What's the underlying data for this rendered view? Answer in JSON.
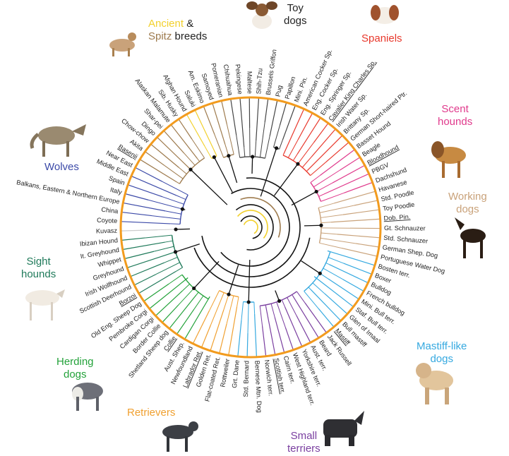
{
  "groups": {
    "ancient_label": "Ancient",
    "ancient_amp": "&",
    "spitz_label": "Spitz",
    "spitz_rest": "breeds",
    "toy_line1": "Toy",
    "toy_line2": "dogs",
    "spaniels": "Spaniels",
    "scent_line1": "Scent",
    "scent_line2": "hounds",
    "working_line1": "Working",
    "working_line2": "dogs",
    "wolves": "Wolves",
    "sight_line1": "Sight",
    "sight_line2": "hounds",
    "mastiff_line1": "Mastiff-like",
    "mastiff_line2": "dogs",
    "herding_line1": "Herding",
    "herding_line2": "dogs",
    "retrievers": "Retrievers",
    "small_line1": "Small",
    "small_line2": "terriers"
  },
  "colors": {
    "ancient": "#f2d02c",
    "spitz": "#9e7b4e",
    "toy": "#444444",
    "spaniels": "#e8382c",
    "scent": "#e03a8c",
    "working": "#c9a27a",
    "wolves": "#3c4aa8",
    "sight": "#1f7a5a",
    "herding": "#23a23a",
    "retrievers": "#f0a030",
    "mastiff": "#35a9e0",
    "small": "#7a3fa0",
    "ring": "#f29b1e",
    "tree": "#111111"
  },
  "photos": [
    "basenji-photo",
    "papillon-photo",
    "cavalier-photo",
    "wolf-photo",
    "bloodhound-photo",
    "doberman-photo",
    "borzoi-photo",
    "mastiff-photo",
    "collie-photo",
    "labrador-photo",
    "scottish-terrier-photo"
  ],
  "breeds": [
    {
      "name": "Papillon",
      "clade": "toy",
      "u": false
    },
    {
      "name": "Mini. Pin.",
      "clade": "toy",
      "u": false
    },
    {
      "name": "American Cocker Sp.",
      "clade": "spaniels",
      "u": false
    },
    {
      "name": "Eng. Cocker Sp.",
      "clade": "spaniels",
      "u": false
    },
    {
      "name": "Eng. Springer Sp.",
      "clade": "spaniels",
      "u": false
    },
    {
      "name": "Cavalier King Charles Sp.",
      "clade": "spaniels",
      "u": true
    },
    {
      "name": "Irish Water Sp.",
      "clade": "spaniels",
      "u": false
    },
    {
      "name": "Brittany Sp.",
      "clade": "spaniels",
      "u": false
    },
    {
      "name": "German Short-haired Ptr.",
      "clade": "spaniels",
      "u": false
    },
    {
      "name": "Basset Hound",
      "clade": "scent",
      "u": false
    },
    {
      "name": "Beagle",
      "clade": "scent",
      "u": false
    },
    {
      "name": "Bloodhound",
      "clade": "scent",
      "u": true
    },
    {
      "name": "PBGV",
      "clade": "scent",
      "u": false
    },
    {
      "name": "Dachshund",
      "clade": "scent",
      "u": false
    },
    {
      "name": "Havanese",
      "clade": "working",
      "u": false
    },
    {
      "name": "Std. Poodle",
      "clade": "working",
      "u": false
    },
    {
      "name": "Toy Poodle",
      "clade": "working",
      "u": false
    },
    {
      "name": "Dob. Pin.",
      "clade": "working",
      "u": true
    },
    {
      "name": "Gt. Schnauzer",
      "clade": "working",
      "u": false
    },
    {
      "name": "Std. Schnauzer",
      "clade": "working",
      "u": false
    },
    {
      "name": "German Shep. Dog",
      "clade": "working",
      "u": false
    },
    {
      "name": "Portuguese Water Dog",
      "clade": "working",
      "u": false
    },
    {
      "name": "Bosten terr.",
      "clade": "mastiff",
      "u": false
    },
    {
      "name": "Boxer",
      "clade": "mastiff",
      "u": false
    },
    {
      "name": "Bulldog",
      "clade": "mastiff",
      "u": false
    },
    {
      "name": "French bulldog",
      "clade": "mastiff",
      "u": false
    },
    {
      "name": "Mini. Bull terr.",
      "clade": "mastiff",
      "u": false
    },
    {
      "name": "Staf. Bull terr.",
      "clade": "mastiff",
      "u": false
    },
    {
      "name": "Glen of Imaal",
      "clade": "mastiff",
      "u": false
    },
    {
      "name": "Bull mastiff",
      "clade": "mastiff",
      "u": false
    },
    {
      "name": "Mastiff",
      "clade": "mastiff",
      "u": true
    },
    {
      "name": "Jack Russell",
      "clade": "small",
      "u": false
    },
    {
      "name": "Beard",
      "clade": "small",
      "u": false
    },
    {
      "name": "Aust. terr.",
      "clade": "small",
      "u": false
    },
    {
      "name": "Yorkshire terr.",
      "clade": "small",
      "u": false
    },
    {
      "name": "West Highland terr.",
      "clade": "small",
      "u": false
    },
    {
      "name": "Cairn terr.",
      "clade": "small",
      "u": false
    },
    {
      "name": "Scottish terr.",
      "clade": "small",
      "u": true
    },
    {
      "name": "Norwich terr.",
      "clade": "small",
      "u": false
    },
    {
      "name": "Bernese Mtn. Dog",
      "clade": "mastiff",
      "u": false
    },
    {
      "name": "Std. Bernard",
      "clade": "mastiff",
      "u": false
    },
    {
      "name": "Grt. Dane",
      "clade": "mastiff",
      "u": false
    },
    {
      "name": "Rottweiler",
      "clade": "retrievers",
      "u": false
    },
    {
      "name": "Flat-coated Ret.",
      "clade": "retrievers",
      "u": false
    },
    {
      "name": "Golden Ret.",
      "clade": "retrievers",
      "u": false
    },
    {
      "name": "Labrador Ret.",
      "clade": "retrievers",
      "u": true
    },
    {
      "name": "Newfoundland",
      "clade": "retrievers",
      "u": false
    },
    {
      "name": "Aust. Shep.",
      "clade": "herding",
      "u": false
    },
    {
      "name": "Collie",
      "clade": "herding",
      "u": true
    },
    {
      "name": "Shetland Sheep dog",
      "clade": "herding",
      "u": false
    },
    {
      "name": "Border Collie",
      "clade": "herding",
      "u": false
    },
    {
      "name": "Cardigan Corgi",
      "clade": "herding",
      "u": false
    },
    {
      "name": "Pembroke Corgi",
      "clade": "herding",
      "u": false
    },
    {
      "name": "Old Eng. Sheep Dog",
      "clade": "herding",
      "u": false
    },
    {
      "name": "Borzoi",
      "clade": "sight",
      "u": true
    },
    {
      "name": "Scottish Deerhound",
      "clade": "sight",
      "u": false
    },
    {
      "name": "Irish Wolfhound",
      "clade": "sight",
      "u": false
    },
    {
      "name": "Greyhound",
      "clade": "sight",
      "u": false
    },
    {
      "name": "Whippet",
      "clade": "sight",
      "u": false
    },
    {
      "name": "It. Greyhound",
      "clade": "sight",
      "u": false
    },
    {
      "name": "Ibizan Hound",
      "clade": "sight",
      "u": false
    },
    {
      "name": "Kuvasz",
      "clade": "neutral",
      "u": false
    },
    {
      "name": "Coyote",
      "clade": "wolves",
      "u": false
    },
    {
      "name": "China",
      "clade": "wolves",
      "u": false
    },
    {
      "name": "Balkans, Eastern & Northern Europe",
      "clade": "wolves",
      "u": false
    },
    {
      "name": "Italy",
      "clade": "wolves",
      "u": false
    },
    {
      "name": "Spain",
      "clade": "wolves",
      "u": false
    },
    {
      "name": "Middle East",
      "clade": "wolves",
      "u": false
    },
    {
      "name": "Near East",
      "clade": "wolves",
      "u": false
    },
    {
      "name": "Basenji",
      "clade": "spitz",
      "u": true
    },
    {
      "name": "Akita",
      "clade": "spitz",
      "u": false
    },
    {
      "name": "Chow-chow",
      "clade": "spitz",
      "u": false
    },
    {
      "name": "Dingo",
      "clade": "spitz",
      "u": false
    },
    {
      "name": "Shar-pei",
      "clade": "spitz",
      "u": false
    },
    {
      "name": "Alaskan Malamute",
      "clade": "spitz",
      "u": false
    },
    {
      "name": "Sib. Husky",
      "clade": "spitz",
      "u": false
    },
    {
      "name": "Afghan Hound",
      "clade": "ancient",
      "u": false
    },
    {
      "name": "Saluki",
      "clade": "ancient",
      "u": false
    },
    {
      "name": "Am. Eskimo",
      "clade": "spitz",
      "u": false
    },
    {
      "name": "Samoyed",
      "clade": "spitz",
      "u": false
    },
    {
      "name": "Pomeranian",
      "clade": "spitz",
      "u": false
    },
    {
      "name": "Chihuahua",
      "clade": "toy",
      "u": false
    },
    {
      "name": "Pekingese",
      "clade": "toy",
      "u": false
    },
    {
      "name": "Maltese",
      "clade": "toy",
      "u": false
    },
    {
      "name": "Shih-Tzu",
      "clade": "toy",
      "u": false
    },
    {
      "name": "Brussels Griffon",
      "clade": "toy",
      "u": false
    },
    {
      "name": "Pug",
      "clade": "toy",
      "u": false
    }
  ]
}
